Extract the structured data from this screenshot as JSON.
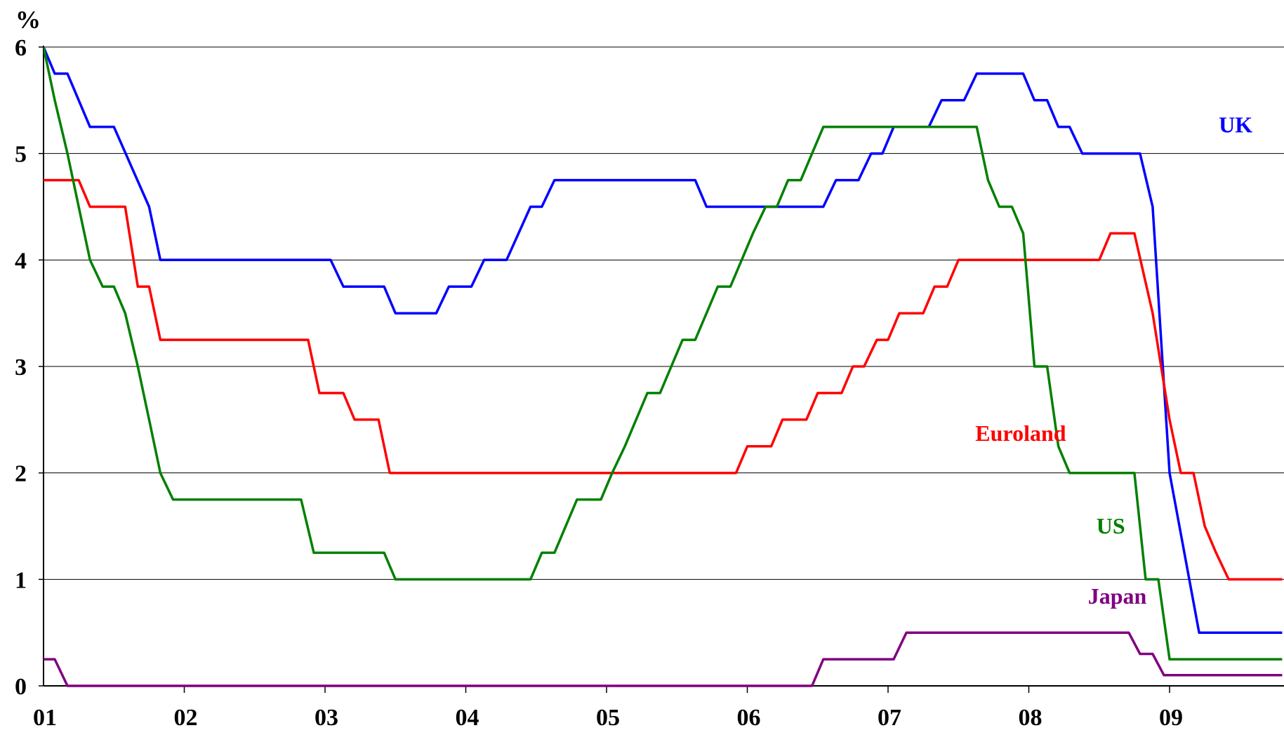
{
  "chart_data": {
    "type": "line",
    "title": "",
    "xlabel": "",
    "ylabel": "%",
    "ylim": [
      0,
      6
    ],
    "xlim": [
      2001.0,
      2009.8
    ],
    "yticks": [
      "0",
      "1",
      "2",
      "3",
      "4",
      "5",
      "6"
    ],
    "xticks": [
      "01",
      "02",
      "03",
      "04",
      "05",
      "06",
      "07",
      "08",
      "09"
    ],
    "grid": "horizontal",
    "series": [
      {
        "name": "UK",
        "color": "#0000ff",
        "points": [
          [
            2001.0,
            6.0
          ],
          [
            2001.08,
            5.75
          ],
          [
            2001.17,
            5.75
          ],
          [
            2001.33,
            5.25
          ],
          [
            2001.5,
            5.25
          ],
          [
            2001.75,
            4.5
          ],
          [
            2001.83,
            4.0
          ],
          [
            2003.04,
            4.0
          ],
          [
            2003.13,
            3.75
          ],
          [
            2003.42,
            3.75
          ],
          [
            2003.5,
            3.5
          ],
          [
            2003.79,
            3.5
          ],
          [
            2003.88,
            3.75
          ],
          [
            2004.04,
            3.75
          ],
          [
            2004.13,
            4.0
          ],
          [
            2004.29,
            4.0
          ],
          [
            2004.46,
            4.5
          ],
          [
            2004.54,
            4.5
          ],
          [
            2004.63,
            4.75
          ],
          [
            2005.63,
            4.75
          ],
          [
            2005.71,
            4.5
          ],
          [
            2006.54,
            4.5
          ],
          [
            2006.63,
            4.75
          ],
          [
            2006.79,
            4.75
          ],
          [
            2006.88,
            5.0
          ],
          [
            2006.96,
            5.0
          ],
          [
            2007.04,
            5.25
          ],
          [
            2007.29,
            5.25
          ],
          [
            2007.38,
            5.5
          ],
          [
            2007.54,
            5.5
          ],
          [
            2007.63,
            5.75
          ],
          [
            2007.96,
            5.75
          ],
          [
            2008.04,
            5.5
          ],
          [
            2008.13,
            5.5
          ],
          [
            2008.21,
            5.25
          ],
          [
            2008.29,
            5.25
          ],
          [
            2008.38,
            5.0
          ],
          [
            2008.79,
            5.0
          ],
          [
            2008.88,
            4.5
          ],
          [
            2009.0,
            2.0
          ],
          [
            2009.21,
            0.5
          ],
          [
            2009.8,
            0.5
          ]
        ]
      },
      {
        "name": "Euroland",
        "color": "#ff0000",
        "points": [
          [
            2001.0,
            4.75
          ],
          [
            2001.25,
            4.75
          ],
          [
            2001.33,
            4.5
          ],
          [
            2001.58,
            4.5
          ],
          [
            2001.67,
            3.75
          ],
          [
            2001.75,
            3.75
          ],
          [
            2001.83,
            3.25
          ],
          [
            2002.88,
            3.25
          ],
          [
            2002.96,
            2.75
          ],
          [
            2003.13,
            2.75
          ],
          [
            2003.21,
            2.5
          ],
          [
            2003.38,
            2.5
          ],
          [
            2003.46,
            2.0
          ],
          [
            2005.92,
            2.0
          ],
          [
            2006.0,
            2.25
          ],
          [
            2006.17,
            2.25
          ],
          [
            2006.25,
            2.5
          ],
          [
            2006.42,
            2.5
          ],
          [
            2006.5,
            2.75
          ],
          [
            2006.67,
            2.75
          ],
          [
            2006.75,
            3.0
          ],
          [
            2006.83,
            3.0
          ],
          [
            2006.92,
            3.25
          ],
          [
            2007.0,
            3.25
          ],
          [
            2007.08,
            3.5
          ],
          [
            2007.25,
            3.5
          ],
          [
            2007.33,
            3.75
          ],
          [
            2007.42,
            3.75
          ],
          [
            2007.5,
            4.0
          ],
          [
            2008.5,
            4.0
          ],
          [
            2008.58,
            4.25
          ],
          [
            2008.75,
            4.25
          ],
          [
            2008.88,
            3.5
          ],
          [
            2009.0,
            2.5
          ],
          [
            2009.08,
            2.0
          ],
          [
            2009.17,
            2.0
          ],
          [
            2009.25,
            1.5
          ],
          [
            2009.33,
            1.25
          ],
          [
            2009.42,
            1.0
          ],
          [
            2009.8,
            1.0
          ]
        ]
      },
      {
        "name": "US",
        "color": "#008000",
        "points": [
          [
            2001.0,
            6.0
          ],
          [
            2001.08,
            5.5
          ],
          [
            2001.17,
            5.0
          ],
          [
            2001.25,
            4.5
          ],
          [
            2001.33,
            4.0
          ],
          [
            2001.42,
            3.75
          ],
          [
            2001.5,
            3.75
          ],
          [
            2001.58,
            3.5
          ],
          [
            2001.67,
            3.0
          ],
          [
            2001.75,
            2.5
          ],
          [
            2001.83,
            2.0
          ],
          [
            2001.92,
            1.75
          ],
          [
            2002.83,
            1.75
          ],
          [
            2002.92,
            1.25
          ],
          [
            2003.42,
            1.25
          ],
          [
            2003.5,
            1.0
          ],
          [
            2004.46,
            1.0
          ],
          [
            2004.54,
            1.25
          ],
          [
            2004.63,
            1.25
          ],
          [
            2004.79,
            1.75
          ],
          [
            2004.96,
            1.75
          ],
          [
            2005.04,
            2.0
          ],
          [
            2005.13,
            2.25
          ],
          [
            2005.29,
            2.75
          ],
          [
            2005.38,
            2.75
          ],
          [
            2005.46,
            3.0
          ],
          [
            2005.54,
            3.25
          ],
          [
            2005.63,
            3.25
          ],
          [
            2005.71,
            3.5
          ],
          [
            2005.79,
            3.75
          ],
          [
            2005.88,
            3.75
          ],
          [
            2005.96,
            4.0
          ],
          [
            2006.04,
            4.25
          ],
          [
            2006.13,
            4.5
          ],
          [
            2006.21,
            4.5
          ],
          [
            2006.29,
            4.75
          ],
          [
            2006.38,
            4.75
          ],
          [
            2006.46,
            5.0
          ],
          [
            2006.54,
            5.25
          ],
          [
            2007.63,
            5.25
          ],
          [
            2007.71,
            4.75
          ],
          [
            2007.79,
            4.5
          ],
          [
            2007.88,
            4.5
          ],
          [
            2007.96,
            4.25
          ],
          [
            2008.04,
            3.0
          ],
          [
            2008.13,
            3.0
          ],
          [
            2008.21,
            2.25
          ],
          [
            2008.29,
            2.0
          ],
          [
            2008.75,
            2.0
          ],
          [
            2008.83,
            1.0
          ],
          [
            2008.92,
            1.0
          ],
          [
            2009.0,
            0.25
          ],
          [
            2009.8,
            0.25
          ]
        ]
      },
      {
        "name": "Japan",
        "color": "#800080",
        "points": [
          [
            2001.0,
            0.25
          ],
          [
            2001.08,
            0.25
          ],
          [
            2001.17,
            0.0
          ],
          [
            2006.46,
            0.0
          ],
          [
            2006.54,
            0.25
          ],
          [
            2007.04,
            0.25
          ],
          [
            2007.13,
            0.5
          ],
          [
            2008.71,
            0.5
          ],
          [
            2008.79,
            0.3
          ],
          [
            2008.88,
            0.3
          ],
          [
            2008.96,
            0.1
          ],
          [
            2009.8,
            0.1
          ]
        ]
      }
    ],
    "series_labels": [
      {
        "series": "UK",
        "at": [
          2009.35,
          5.2
        ]
      },
      {
        "series": "Euroland",
        "at": [
          2007.62,
          2.3
        ]
      },
      {
        "series": "US",
        "at": [
          2008.48,
          1.43
        ]
      },
      {
        "series": "Japan",
        "at": [
          2008.42,
          0.77
        ]
      }
    ]
  }
}
